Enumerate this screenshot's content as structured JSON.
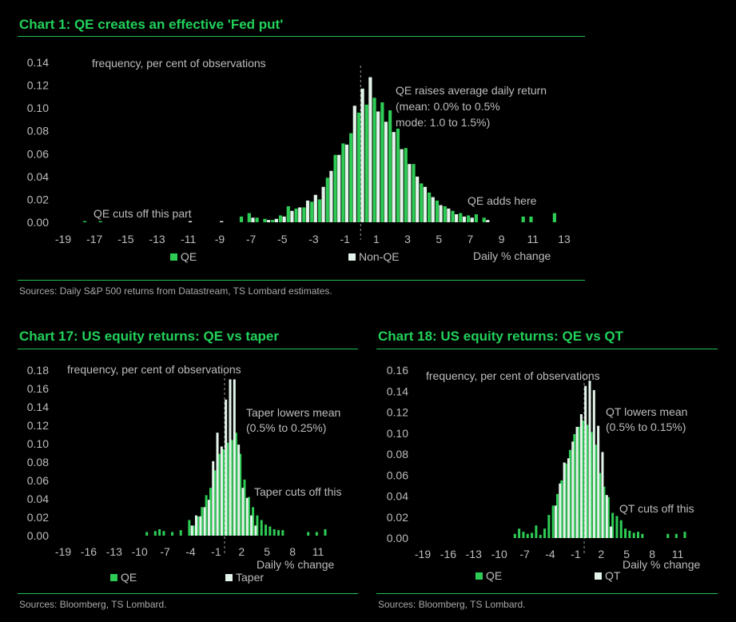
{
  "charts": [
    {
      "title": "Chart 1: QE creates an effective 'Fed put'",
      "source": "Sources: Daily S&P 500 returns from Datastream, TS Lombard estimates.",
      "ylabel": "frequency, per cent of observations",
      "xlabel": "Daily % change",
      "annotations": [
        "QE raises average daily return",
        "(mean: 0.0% to 0.5%",
        "mode: 1.0 to 1.5%)",
        "QE adds here",
        "QE cuts off this part"
      ],
      "colors": {
        "series_a": "#2ecc55",
        "series_b": "#e4f4ea",
        "mean_line": "#9a9a9a"
      }
    },
    {
      "title": "Chart 17: US equity returns: QE vs taper",
      "source": "Sources: Bloomberg, TS Lombard.",
      "ylabel": "frequency, per cent of observations",
      "xlabel": "Daily % change",
      "annotations": [
        "Taper lowers mean",
        "(0.5% to 0.25%)",
        "Taper cuts off this"
      ],
      "colors": {
        "series_a": "#2ecc55",
        "series_b": "#e4f4ea",
        "mean_line": "#9a9a9a"
      }
    },
    {
      "title": "Chart 18: US equity returns: QE vs QT",
      "source": "Sources: Bloomberg, TS Lombard.",
      "ylabel": "frequency, per cent of observations",
      "xlabel": "Daily % change",
      "annotations": [
        "QT lowers mean",
        "(0.5% to 0.15%)",
        "QT cuts off this"
      ],
      "colors": {
        "series_a": "#2ecc55",
        "series_b": "#e4f4ea",
        "mean_line": "#9a9a9a"
      }
    }
  ],
  "chart_data": [
    {
      "type": "bar",
      "bin_width": 0.5,
      "xticks": [
        -19,
        -17,
        -15,
        -13,
        -11,
        -9,
        -7,
        -5,
        -3,
        -1,
        1,
        3,
        5,
        7,
        9,
        11,
        13
      ],
      "yticks": [
        "0.00",
        "0.02",
        "0.04",
        "0.06",
        "0.08",
        "0.10",
        "0.12",
        "0.14"
      ],
      "xlim": [
        -20,
        14
      ],
      "ylim": [
        0,
        0.14
      ],
      "mean_marker_x": 0,
      "series": [
        {
          "name": "QE",
          "x": [
            -17.5,
            -16.5,
            -7.5,
            -7,
            -6.5,
            -6,
            -5.5,
            -5,
            -4.5,
            -4,
            -3.5,
            -3,
            -2.5,
            -2,
            -1.5,
            -1,
            -0.5,
            0,
            0.5,
            1,
            1.5,
            2,
            2.5,
            3,
            3.5,
            4,
            4.5,
            5,
            5.5,
            6,
            6.5,
            7,
            7.5,
            8,
            10.5,
            11,
            12.5
          ],
          "y": [
            0.001,
            0.001,
            0.005,
            0.008,
            0.004,
            0.003,
            0.002,
            0.006,
            0.014,
            0.012,
            0.013,
            0.018,
            0.02,
            0.039,
            0.059,
            0.069,
            0.078,
            0.096,
            0.103,
            0.109,
            0.105,
            0.098,
            0.082,
            0.065,
            0.051,
            0.034,
            0.026,
            0.019,
            0.014,
            0.01,
            0.008,
            0.006,
            0.007,
            0.004,
            0.005,
            0.005,
            0.008
          ]
        },
        {
          "name": "Non-QE",
          "x": [
            -11,
            -9,
            -7,
            -6,
            -5.5,
            -5,
            -4.5,
            -4,
            -3.5,
            -3,
            -2.5,
            -2,
            -1.5,
            -1,
            -0.5,
            0,
            0.5,
            1,
            1.5,
            2,
            2.5,
            3,
            3.5,
            4,
            4.5,
            5,
            5.5,
            6,
            6.5,
            7,
            8
          ],
          "y": [
            0.001,
            0.001,
            0.004,
            0.002,
            0.003,
            0.005,
            0.01,
            0.013,
            0.019,
            0.024,
            0.031,
            0.045,
            0.059,
            0.068,
            0.102,
            0.117,
            0.127,
            0.097,
            0.088,
            0.079,
            0.064,
            0.051,
            0.04,
            0.031,
            0.022,
            0.015,
            0.012,
            0.007,
            0.005,
            0.004,
            0.002
          ]
        }
      ]
    },
    {
      "type": "bar",
      "bin_width": 0.5,
      "xticks": [
        -19,
        -16,
        -13,
        -10,
        -7,
        -4,
        -1,
        2,
        5,
        8,
        11
      ],
      "yticks": [
        "0.00",
        "0.02",
        "0.04",
        "0.06",
        "0.08",
        "0.10",
        "0.12",
        "0.14",
        "0.16",
        "0.18"
      ],
      "xlim": [
        -20,
        13
      ],
      "ylim": [
        0,
        0.18
      ],
      "mean_marker_x": 0,
      "series": [
        {
          "name": "QE",
          "x": [
            -9,
            -8,
            -7.5,
            -7,
            -6,
            -5,
            -4,
            -3.5,
            -3,
            -2.5,
            -2,
            -1.5,
            -1,
            -0.5,
            0,
            0.5,
            1,
            1.5,
            2,
            2.5,
            3,
            3.5,
            4,
            4.5,
            5,
            5.5,
            6,
            6.5,
            7,
            10,
            11,
            12
          ],
          "y": [
            0.004,
            0.005,
            0.007,
            0.005,
            0.004,
            0.006,
            0.017,
            0.011,
            0.021,
            0.031,
            0.044,
            0.052,
            0.071,
            0.089,
            0.094,
            0.101,
            0.104,
            0.112,
            0.089,
            0.061,
            0.042,
            0.031,
            0.022,
            0.017,
            0.012,
            0.01,
            0.007,
            0.006,
            0.006,
            0.004,
            0.004,
            0.007
          ]
        },
        {
          "name": "Taper",
          "x": [
            -4,
            -3.5,
            -3,
            -2.5,
            -2,
            -1.5,
            -1,
            -0.5,
            0,
            0.5,
            1,
            1.5,
            2,
            2.5,
            3,
            3.5
          ],
          "y": [
            0.011,
            0.022,
            0.021,
            0.031,
            0.039,
            0.081,
            0.112,
            0.097,
            0.148,
            0.17,
            0.17,
            0.099,
            0.052,
            0.041,
            0.022,
            0.011
          ]
        }
      ]
    },
    {
      "type": "bar",
      "bin_width": 0.5,
      "xticks": [
        -19,
        -16,
        -13,
        -10,
        -7,
        -4,
        -1,
        2,
        5,
        8,
        11
      ],
      "yticks": [
        "0.00",
        "0.02",
        "0.04",
        "0.06",
        "0.08",
        "0.10",
        "0.12",
        "0.14",
        "0.16"
      ],
      "xlim": [
        -20,
        13
      ],
      "ylim": [
        0,
        0.16
      ],
      "mean_marker_x": 0,
      "series": [
        {
          "name": "QE",
          "x": [
            -8,
            -7.5,
            -7,
            -6.5,
            -6,
            -5.5,
            -5,
            -4.5,
            -4,
            -3.5,
            -3,
            -2.5,
            -2,
            -1.5,
            -1,
            -0.5,
            0,
            0.5,
            1,
            1.5,
            2,
            2.5,
            3,
            3.5,
            4,
            4.5,
            5,
            5.5,
            6,
            6.5,
            7,
            10,
            11,
            12
          ],
          "y": [
            0.004,
            0.009,
            0.006,
            0.004,
            0.005,
            0.012,
            0.003,
            0.009,
            0.022,
            0.031,
            0.042,
            0.055,
            0.071,
            0.084,
            0.099,
            0.106,
            0.112,
            0.108,
            0.101,
            0.089,
            0.062,
            0.049,
            0.039,
            0.024,
            0.021,
            0.017,
            0.009,
            0.007,
            0.005,
            0.006,
            0.004,
            0.004,
            0.004,
            0.006
          ]
        },
        {
          "name": "QT",
          "x": [
            -3.5,
            -3,
            -2.5,
            -2,
            -1.5,
            -1,
            -0.5,
            0,
            0.5,
            1,
            1.5,
            2,
            2.5,
            3
          ],
          "y": [
            0.031,
            0.052,
            0.072,
            0.076,
            0.092,
            0.106,
            0.118,
            0.145,
            0.15,
            0.141,
            0.107,
            0.082,
            0.041,
            0.011
          ]
        }
      ]
    }
  ]
}
